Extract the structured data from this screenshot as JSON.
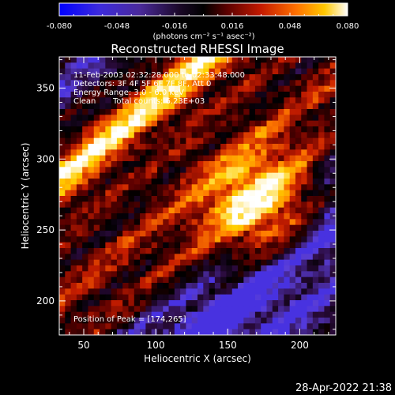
{
  "chart_data": {
    "type": "heatmap",
    "title": "Reconstructed RHESSI Image",
    "xlabel": "Heliocentric X (arcsec)",
    "ylabel": "Heliocentric Y (arcsec)",
    "xlim": [
      33,
      225
    ],
    "ylim": [
      176,
      372
    ],
    "x_ticks": [
      50,
      100,
      150,
      200
    ],
    "y_ticks": [
      200,
      250,
      300,
      350
    ],
    "colorbar": {
      "min": -0.08,
      "max": 0.08,
      "ticks": [
        "-0.080",
        "-0.048",
        "-0.016",
        "0.016",
        "0.048",
        "0.080"
      ],
      "units": "(photons cm⁻² s⁻¹ asec⁻²)",
      "colormap": [
        "#0000ff",
        "#5a3ed8",
        "#2a0a3a",
        "#000000",
        "#5a0000",
        "#c81e00",
        "#ff7a00",
        "#ffd000",
        "#ffffff"
      ]
    },
    "annotations": {
      "time": "11-Feb-2003 02:32:28.000 to 02:33:48.000",
      "detectors": "Detectors: 3F 4F 5F 6F 7F 8F, Att 0",
      "energy": "Energy Range: 3.0 - 6.0 keV",
      "method": "Clean",
      "counts": "Total counts: 6.23E+03",
      "peak": "Position of Peak = [174,265]"
    },
    "peak": [
      174,
      265
    ],
    "image_grid": {
      "rows": 48,
      "cols": 48,
      "description": "diagonal striped emission pattern running lower-left to upper-right, bright core near peak"
    }
  },
  "footer": {
    "timestamp": "28-Apr-2022 21:38"
  }
}
